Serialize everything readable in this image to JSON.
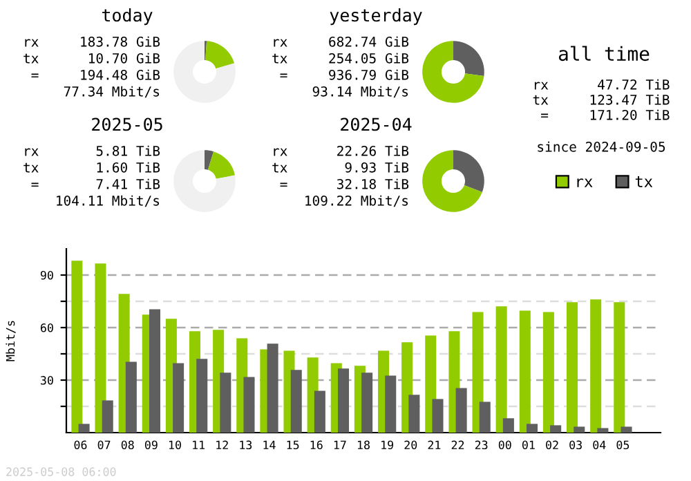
{
  "chart_data": [
    {
      "type": "donut",
      "title": "today",
      "categories": [
        null,
        null,
        null
      ],
      "values": [
        1.1,
        19.4,
        79.5
      ],
      "colors": [
        "#5f5f5f",
        "#92cc00",
        "#f0f0f0"
      ],
      "annotations": [
        "rx     183.78 GiB",
        "tx      10.70 GiB",
        " =     194.48 GiB",
        "      77.34 Mbit/s"
      ]
    },
    {
      "type": "donut",
      "title": "yesterday",
      "categories": [
        null,
        null
      ],
      "values": [
        27.1,
        72.9
      ],
      "colors": [
        "#5f5f5f",
        "#92cc00"
      ],
      "annotations": [
        "rx     682.74 GiB",
        "tx     254.05 GiB",
        " =     936.79 GiB",
        "      93.14 Mbit/s"
      ]
    },
    {
      "type": "donut",
      "title": "2025-05",
      "categories": [
        null,
        null,
        null
      ],
      "values": [
        4.7,
        17.3,
        78.0
      ],
      "colors": [
        "#5f5f5f",
        "#92cc00",
        "#f0f0f0"
      ],
      "annotations": [
        "rx       5.81 TiB",
        "tx       1.60 TiB",
        " =       7.41 TiB",
        "     104.11 Mbit/s"
      ]
    },
    {
      "type": "donut",
      "title": "2025-04",
      "categories": [
        null,
        null
      ],
      "values": [
        30.8,
        69.2
      ],
      "colors": [
        "#5f5f5f",
        "#92cc00"
      ],
      "annotations": [
        "rx      22.26 TiB",
        "tx       9.93 TiB",
        " =      32.18 TiB",
        "     109.22 Mbit/s"
      ]
    },
    {
      "type": "other",
      "title": "all time",
      "annotations": [
        "rx      47.72 TiB",
        "tx     123.47 TiB",
        " =     171.20 TiB",
        "since 2024-09-05"
      ]
    },
    {
      "type": "bar",
      "ylabel": "Mbit/s",
      "categories": [
        "06",
        "07",
        "08",
        "09",
        "10",
        "11",
        "12",
        "13",
        "14",
        "15",
        "16",
        "17",
        "18",
        "19",
        "20",
        "21",
        "22",
        "23",
        "00",
        "01",
        "02",
        "03",
        "04",
        "05"
      ],
      "series": [
        {
          "name": "rx",
          "color": "#92cc00",
          "values": [
            98.2,
            96.6,
            79.2,
            67.4,
            65.0,
            57.9,
            58.7,
            53.9,
            47.6,
            46.8,
            42.9,
            39.7,
            38.2,
            46.8,
            51.6,
            55.5,
            57.9,
            68.9,
            72.1,
            69.7,
            68.9,
            74.5,
            76.1,
            74.5
          ]
        },
        {
          "name": "tx",
          "color": "#5f5f5f",
          "values": [
            5.0,
            18.4,
            40.5,
            70.5,
            39.7,
            42.1,
            34.2,
            31.8,
            50.8,
            35.8,
            23.9,
            36.6,
            34.2,
            32.6,
            21.6,
            19.2,
            25.5,
            17.6,
            8.2,
            5.0,
            4.2,
            3.4,
            2.6,
            3.4
          ]
        }
      ],
      "ylim": [
        0,
        105
      ],
      "yticks": [
        {
          "value": 15,
          "label": null
        },
        30,
        {
          "value": 45,
          "label": null
        },
        60,
        {
          "value": 75,
          "label": null
        },
        90
      ],
      "grid": "y",
      "legend": "top right",
      "annotations": [
        "2025-05-08 06:00"
      ]
    }
  ]
}
